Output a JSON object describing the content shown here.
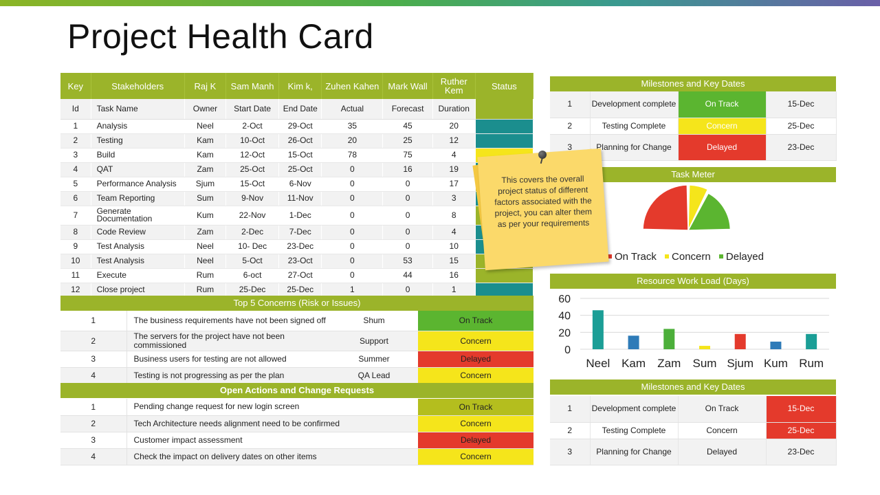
{
  "title": "Project Health Card",
  "main": {
    "header": [
      "Key",
      "Stakeholders",
      "Raj K",
      "Sam Manh",
      "Kim k,",
      "Zuhen Kahen",
      "Mark Wall",
      "Ruther Kem",
      "Status"
    ],
    "subheader": [
      "Id",
      "Task Name",
      "Owner",
      "Start Date",
      "End Date",
      "Actual",
      "Forecast",
      "Duration",
      ""
    ],
    "rows": [
      {
        "id": "1",
        "task": "Analysis",
        "owner": "Neel",
        "start": "2-Oct",
        "end": "29-Oct",
        "actual": "35",
        "forecast": "45",
        "duration": "20",
        "status": "teal"
      },
      {
        "id": "2",
        "task": "Testing",
        "owner": "Kam",
        "start": "10-Oct",
        "end": "26-Oct",
        "actual": "20",
        "forecast": "25",
        "duration": "12",
        "status": "teal"
      },
      {
        "id": "3",
        "task": "Build",
        "owner": "Kam",
        "start": "12-Oct",
        "end": "15-Oct",
        "actual": "78",
        "forecast": "75",
        "duration": "4",
        "status": "yellow"
      },
      {
        "id": "4",
        "task": "QAT",
        "owner": "Zam",
        "start": "25-Oct",
        "end": "25-Oct",
        "actual": "0",
        "forecast": "16",
        "duration": "19",
        "status": "teal"
      },
      {
        "id": "5",
        "task": "Performance Analysis",
        "owner": "Sjum",
        "start": "15-Oct",
        "end": "6-Nov",
        "actual": "0",
        "forecast": "0",
        "duration": "17",
        "status": "green"
      },
      {
        "id": "6",
        "task": "Team Reporting",
        "owner": "Sum",
        "start": "9-Nov",
        "end": "11-Nov",
        "actual": "0",
        "forecast": "0",
        "duration": "3",
        "status": "teal"
      },
      {
        "id": "7",
        "task": "Generate Documentation",
        "owner": "Kum",
        "start": "22-Nov",
        "end": "1-Dec",
        "actual": "0",
        "forecast": "0",
        "duration": "8",
        "status": "green"
      },
      {
        "id": "8",
        "task": "Code Review",
        "owner": "Zam",
        "start": "2-Dec",
        "end": "7-Dec",
        "actual": "0",
        "forecast": "0",
        "duration": "4",
        "status": "teal"
      },
      {
        "id": "9",
        "task": "Test Analysis",
        "owner": "Neel",
        "start": "10- Dec",
        "end": "23-Dec",
        "actual": "0",
        "forecast": "0",
        "duration": "10",
        "status": "teal"
      },
      {
        "id": "10",
        "task": "Test Analysis",
        "owner": "Neel",
        "start": "5-Oct",
        "end": "23-Oct",
        "actual": "0",
        "forecast": "53",
        "duration": "15",
        "status": "green"
      },
      {
        "id": "11",
        "task": "Execute",
        "owner": "Rum",
        "start": "6-oct",
        "end": "27-Oct",
        "actual": "0",
        "forecast": "44",
        "duration": "16",
        "status": "green"
      },
      {
        "id": "12",
        "task": "Close project",
        "owner": "Rum",
        "start": "25-Dec",
        "end": "25-Dec",
        "actual": "1",
        "forecast": "0",
        "duration": "1",
        "status": "teal"
      }
    ]
  },
  "concerns": {
    "title": "Top 5 Concerns (Risk or Issues)",
    "rows": [
      {
        "num": "1",
        "desc": "The business requirements have not been signed off",
        "owner": "Shum",
        "status": "On Track",
        "state": "ontrack"
      },
      {
        "num": "2",
        "desc": "The servers for the project have not been commissioned",
        "owner": "Support",
        "status": "Concern",
        "state": "concern"
      },
      {
        "num": "3",
        "desc": "Business users for testing are not allowed",
        "owner": "Summer",
        "status": "Delayed",
        "state": "delayed"
      },
      {
        "num": "4",
        "desc": "Testing is not progressing as per the plan",
        "owner": "QA Lead",
        "status": "Concern",
        "state": "concern"
      }
    ]
  },
  "actions": {
    "title": "Open Actions and Change Requests",
    "rows": [
      {
        "num": "1",
        "desc": "Pending change request for new login screen",
        "status": "On Track",
        "state": "olive"
      },
      {
        "num": "2",
        "desc": "Tech Architecture needs alignment need to be confirmed",
        "status": "Concern",
        "state": "concern"
      },
      {
        "num": "3",
        "desc": "Customer impact assessment",
        "status": "Delayed",
        "state": "delayed"
      },
      {
        "num": "4",
        "desc": "Check the impact on delivery dates on other items",
        "status": "Concern",
        "state": "concern"
      }
    ]
  },
  "milestones_top": {
    "title": "Milestones and Key Dates",
    "rows": [
      {
        "num": "1",
        "name": "Development complete",
        "status": "On Track",
        "state": "ontrack",
        "date": "15-Dec"
      },
      {
        "num": "2",
        "name": "Testing Complete",
        "status": "Concern",
        "state": "concern",
        "date": "25-Dec"
      },
      {
        "num": "3",
        "name": "Planning for Change",
        "status": "Delayed",
        "state": "delayed",
        "date": "23-Dec"
      }
    ]
  },
  "task_meter": {
    "title": "Task Meter",
    "legend": [
      "On Track",
      "Concern",
      "Delayed"
    ],
    "legend_colors": [
      "#e43a2c",
      "#f5e51b",
      "#5bb530"
    ]
  },
  "note": {
    "text": "This covers the overall project status of different factors associated with the project, you can alter them as per your requirements"
  },
  "workload": {
    "title": "Resource Work Load (Days)"
  },
  "milestones_bottom": {
    "title": "Milestones and Key Dates",
    "rows": [
      {
        "num": "1",
        "name": "Development complete",
        "status": "On Track",
        "date": "15-Dec",
        "date_state": "delayed"
      },
      {
        "num": "2",
        "name": "Testing Complete",
        "status": "Concern",
        "date": "25-Dec",
        "date_state": "delayed"
      },
      {
        "num": "3",
        "name": "Planning for Change",
        "status": "Delayed",
        "date": "23-Dec",
        "date_state": ""
      }
    ]
  },
  "chart_data": [
    {
      "type": "pie",
      "title": "Task Meter",
      "categories": [
        "On Track",
        "Concern",
        "Delayed"
      ],
      "values": [
        50,
        15,
        35
      ],
      "colors": [
        "#e43a2c",
        "#f5e51b",
        "#5bb530"
      ]
    },
    {
      "type": "bar",
      "title": "Resource Work Load (Days)",
      "categories": [
        "Neel",
        "Kam",
        "Zam",
        "Sum",
        "Sjum",
        "Kum",
        "Rum"
      ],
      "values": [
        46,
        16,
        24,
        4,
        18,
        9,
        18
      ],
      "colors": [
        "#1b9e96",
        "#2e7bb8",
        "#4caf3a",
        "#f5e51b",
        "#e43a2c",
        "#2e7bb8",
        "#1b9e96"
      ],
      "ylim": [
        0,
        60
      ],
      "yticks": [
        "0",
        "20",
        "40",
        "60"
      ],
      "grid": true
    }
  ]
}
